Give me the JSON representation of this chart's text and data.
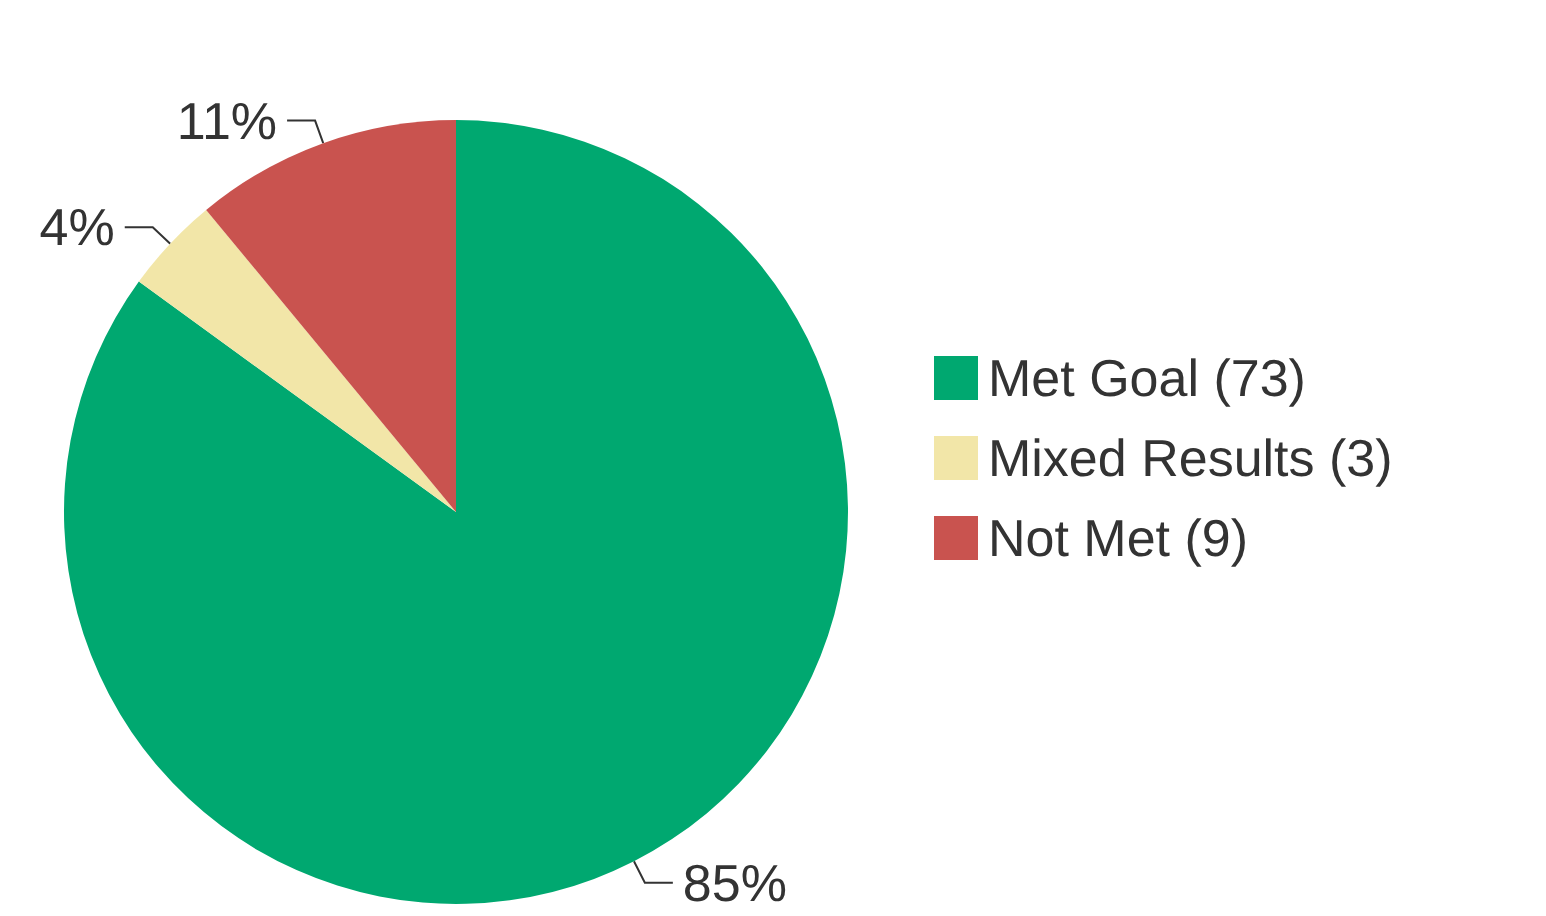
{
  "chart_data": {
    "type": "pie",
    "categories": [
      "Met Goal (73)",
      "Mixed Results (3)",
      "Not Met (9)"
    ],
    "values": [
      85,
      4,
      11
    ],
    "colors": [
      "#00a870",
      "#f2e6a8",
      "#c9534f"
    ],
    "value_labels": [
      "85%",
      "4%",
      "11%"
    ],
    "legend": "right"
  }
}
